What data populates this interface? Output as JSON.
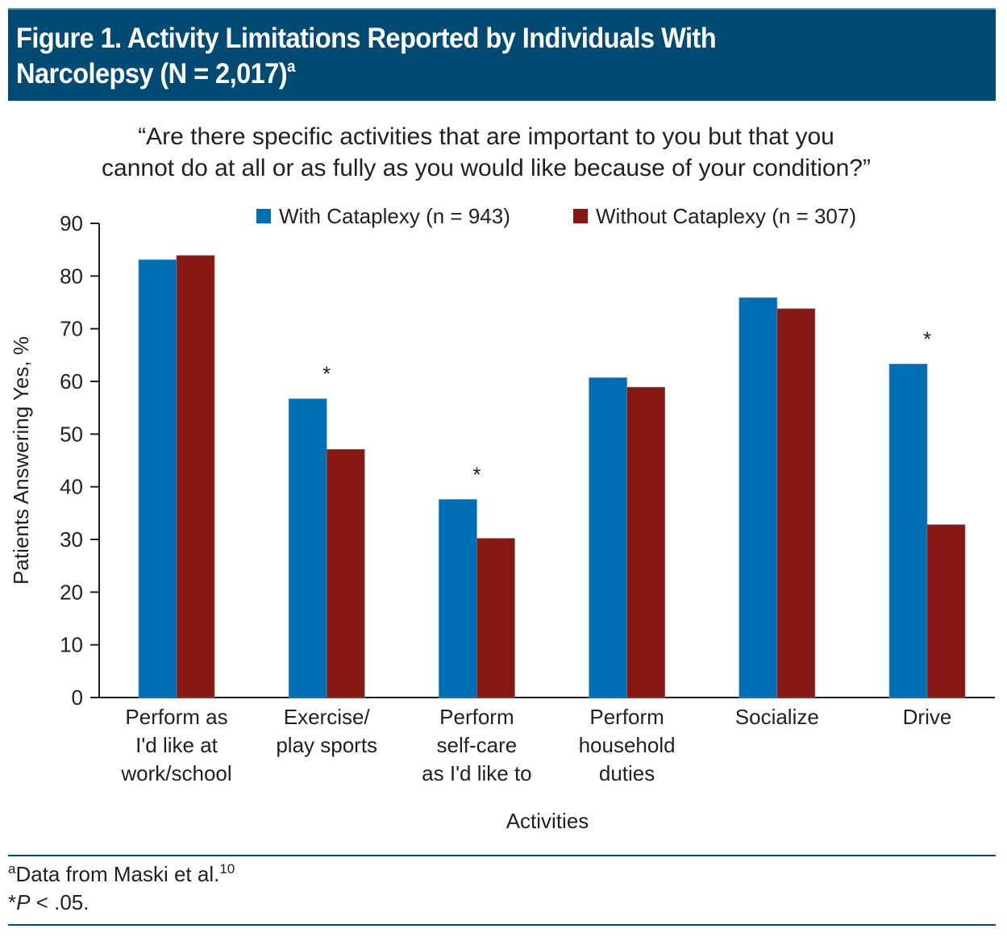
{
  "figure": {
    "title_line1": "Figure 1. Activity Limitations Reported by Individuals With",
    "title_line2": "Narcolepsy (N = 2,017)",
    "title_superscript": "a",
    "question_line1": "“Are there specific activities that are important to you but that you",
    "question_line2": "cannot do at all or as fully as you would like because of your condition?”"
  },
  "colors": {
    "header_bg": "#004a74",
    "with_cataplexy": "#006eb2",
    "without_cataplexy": "#861713",
    "text": "#231f20"
  },
  "footnotes": {
    "note_a_marker": "a",
    "note_a_text": "Data from Maski et al.",
    "note_a_ref": "10",
    "note_star_marker": "*",
    "note_star_p": "P",
    "note_star_rest": " < .05."
  },
  "chart_data": {
    "type": "bar",
    "title": "Figure 1. Activity Limitations Reported by Individuals With Narcolepsy (N = 2,017)",
    "subtitle": "“Are there specific activities that are important to you but that you cannot do at all or as fully as you would like because of your condition?”",
    "xlabel": "Activities",
    "ylabel": "Patients Answering Yes, %",
    "ylim": [
      0,
      90
    ],
    "yticks": [
      0,
      10,
      20,
      30,
      40,
      50,
      60,
      70,
      80,
      90
    ],
    "grid": false,
    "legend_position": "top",
    "categories": [
      [
        "Perform as",
        "I'd like at",
        "work/school"
      ],
      [
        "Exercise/",
        "play sports"
      ],
      [
        "Perform",
        "self-care",
        "as I'd like to"
      ],
      [
        "Perform",
        "household",
        "duties"
      ],
      [
        "Socialize"
      ],
      [
        "Drive"
      ]
    ],
    "series": [
      {
        "name": "With Cataplexy (n = 943)",
        "color": "#006eb2",
        "values": [
          83.1,
          56.7,
          37.6,
          60.7,
          75.9,
          63.3
        ]
      },
      {
        "name": "Without Cataplexy (n = 307)",
        "color": "#861713",
        "values": [
          83.9,
          47.1,
          30.2,
          58.9,
          73.8,
          32.8
        ]
      }
    ],
    "significance": [
      false,
      true,
      true,
      false,
      false,
      true
    ],
    "significance_marker": "*"
  }
}
